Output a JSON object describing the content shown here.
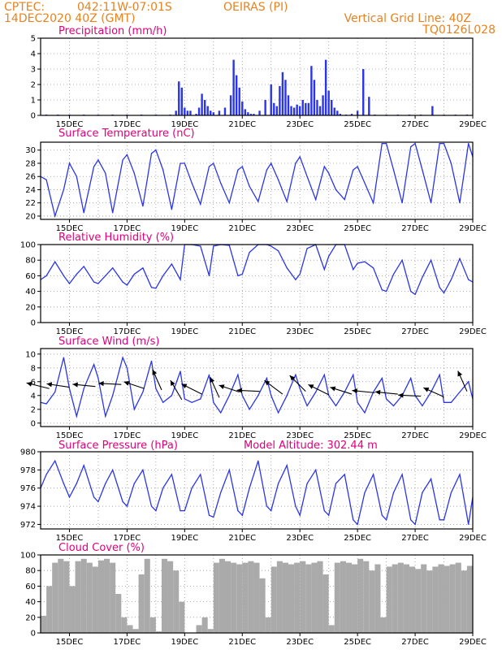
{
  "header": {
    "center": "CPTEC:",
    "location": "042:11W-07:01S",
    "station": "OEIRAS (PI)",
    "init": "14DEC2020 40Z (GMT)",
    "grid_note": "Vertical Grid Line: 40Z",
    "code": "TQ0126L028"
  },
  "colors": {
    "header": "#e8821e",
    "title": "#e0007a",
    "line": "#2a35e8",
    "cloud": "#aaaaaa",
    "grid": "#999999"
  },
  "x_axis": {
    "start_day": 14.0,
    "end_day": 29.0,
    "labels": [
      {
        "day": 15,
        "text": "15DEC"
      },
      {
        "day": 17,
        "text": "17DEC"
      },
      {
        "day": 19,
        "text": "19DEC"
      },
      {
        "day": 21,
        "text": "21DEC"
      },
      {
        "day": 23,
        "text": "23DEC"
      },
      {
        "day": 25,
        "text": "25DEC"
      },
      {
        "day": 27,
        "text": "27DEC"
      },
      {
        "day": 29,
        "text": "29DEC"
      }
    ]
  },
  "chart_data": [
    {
      "id": "precip",
      "type": "bar",
      "title": "Precipitation (mm/h)",
      "ylim": [
        0,
        5
      ],
      "yticks": [
        0,
        1,
        2,
        3,
        4,
        5
      ],
      "grid": true,
      "x": [
        14.2,
        14.6,
        15.0,
        15.5,
        16.0,
        16.5,
        17.0,
        17.5,
        18.0,
        18.5,
        18.7,
        18.8,
        18.9,
        19.0,
        19.1,
        19.2,
        19.4,
        19.5,
        19.6,
        19.7,
        19.8,
        19.9,
        20.0,
        20.2,
        20.4,
        20.6,
        20.7,
        20.8,
        20.9,
        21.0,
        21.1,
        21.2,
        21.3,
        21.4,
        21.6,
        21.8,
        22.0,
        22.1,
        22.2,
        22.3,
        22.4,
        22.5,
        22.6,
        22.7,
        22.8,
        22.9,
        23.0,
        23.1,
        23.2,
        23.3,
        23.4,
        23.5,
        23.6,
        23.7,
        23.8,
        23.9,
        24.0,
        24.1,
        24.2,
        24.3,
        24.4,
        24.6,
        24.8,
        25.0,
        25.2,
        25.4,
        25.6,
        26.0,
        26.4,
        26.8,
        27.2,
        27.6,
        28.0,
        28.4,
        28.8
      ],
      "values": [
        0.05,
        0.05,
        0.05,
        0.05,
        0.05,
        0.05,
        0.05,
        0.05,
        0.05,
        0.05,
        0.3,
        2.2,
        1.8,
        0.5,
        0.3,
        0.3,
        0.1,
        0.5,
        1.4,
        1.0,
        0.6,
        0.3,
        0.2,
        0.3,
        0.5,
        1.3,
        3.6,
        2.6,
        1.8,
        0.9,
        0.4,
        0.2,
        0.1,
        0.1,
        0.3,
        1.0,
        2.0,
        0.8,
        0.6,
        1.9,
        2.8,
        2.3,
        1.3,
        0.6,
        0.5,
        0.7,
        0.6,
        1.0,
        0.8,
        0.8,
        3.2,
        2.3,
        1.0,
        0.6,
        1.3,
        3.6,
        1.6,
        1.0,
        0.5,
        0.3,
        0.1,
        0.05,
        0.1,
        0.3,
        3.0,
        1.2,
        0.05,
        0.05,
        0.05,
        0.05,
        0.05,
        0.6,
        0.05,
        0.05,
        0.05
      ]
    },
    {
      "id": "temp",
      "type": "line",
      "title": "Surface Temperature (nC)",
      "ylim": [
        19.5,
        31.2
      ],
      "yticks": [
        20,
        22,
        24,
        26,
        28,
        30
      ],
      "grid": true,
      "x": [
        14.0,
        14.2,
        14.5,
        14.8,
        15.0,
        15.25,
        15.5,
        15.85,
        16.0,
        16.25,
        16.5,
        16.85,
        17.0,
        17.25,
        17.55,
        17.85,
        18.0,
        18.25,
        18.55,
        18.85,
        19.0,
        19.25,
        19.55,
        19.85,
        20.0,
        20.25,
        20.55,
        20.85,
        21.0,
        21.25,
        21.55,
        21.85,
        22.0,
        22.25,
        22.55,
        22.85,
        23.0,
        23.25,
        23.55,
        23.85,
        24.0,
        24.25,
        24.55,
        24.85,
        25.0,
        25.25,
        25.55,
        25.85,
        26.0,
        26.25,
        26.55,
        26.85,
        27.0,
        27.25,
        27.55,
        27.85,
        28.0,
        28.25,
        28.55,
        28.85,
        29.0
      ],
      "values": [
        26.0,
        25.5,
        20.0,
        24.0,
        28.0,
        26.0,
        20.5,
        27.5,
        28.5,
        26.5,
        20.5,
        28.5,
        29.3,
        26.5,
        21.5,
        29.5,
        30.0,
        27.0,
        21.0,
        28.0,
        28.0,
        25.0,
        21.8,
        27.5,
        28.0,
        25.0,
        22.0,
        27.0,
        27.5,
        24.5,
        22.2,
        27.0,
        28.0,
        25.5,
        22.2,
        28.0,
        29.0,
        26.0,
        22.5,
        27.5,
        26.5,
        24.0,
        22.5,
        27.0,
        27.5,
        25.0,
        22.0,
        31.0,
        31.0,
        27.0,
        22.0,
        30.5,
        31.0,
        27.0,
        22.0,
        31.0,
        31.0,
        28.0,
        22.0,
        31.0,
        29.0
      ]
    },
    {
      "id": "rh",
      "type": "line",
      "title": "Relative Humidity (%)",
      "ylim": [
        0,
        100
      ],
      "yticks": [
        0,
        20,
        40,
        60,
        80,
        100
      ],
      "grid": true,
      "x": [
        14.0,
        14.2,
        14.5,
        14.8,
        15.0,
        15.25,
        15.5,
        15.85,
        16.0,
        16.25,
        16.5,
        16.85,
        17.0,
        17.25,
        17.55,
        17.85,
        18.0,
        18.25,
        18.55,
        18.85,
        19.0,
        19.25,
        19.55,
        19.85,
        20.0,
        20.25,
        20.55,
        20.85,
        21.0,
        21.25,
        21.55,
        21.85,
        22.0,
        22.25,
        22.55,
        22.85,
        23.0,
        23.25,
        23.55,
        23.85,
        24.0,
        24.25,
        24.55,
        24.85,
        25.0,
        25.25,
        25.55,
        25.85,
        26.0,
        26.25,
        26.55,
        26.85,
        27.0,
        27.25,
        27.55,
        27.85,
        28.0,
        28.25,
        28.55,
        28.85,
        29.0
      ],
      "values": [
        55,
        60,
        78,
        60,
        50,
        62,
        72,
        52,
        50,
        60,
        70,
        52,
        48,
        62,
        70,
        45,
        44,
        60,
        75,
        55,
        100,
        100,
        98,
        60,
        98,
        100,
        99,
        60,
        62,
        90,
        100,
        100,
        98,
        92,
        70,
        55,
        62,
        95,
        100,
        68,
        85,
        100,
        100,
        68,
        76,
        78,
        70,
        42,
        40,
        62,
        80,
        40,
        36,
        58,
        80,
        45,
        38,
        55,
        82,
        55,
        52
      ]
    },
    {
      "id": "wind",
      "type": "line",
      "title": "Surface Wind (m/s)",
      "ylim": [
        -0.5,
        10.8
      ],
      "yticks": [
        0,
        2,
        4,
        6,
        8,
        10
      ],
      "grid": true,
      "x": [
        14.0,
        14.2,
        14.5,
        14.8,
        15.0,
        15.25,
        15.5,
        15.85,
        16.0,
        16.25,
        16.5,
        16.85,
        17.0,
        17.25,
        17.55,
        17.85,
        18.0,
        18.25,
        18.55,
        18.85,
        19.0,
        19.25,
        19.55,
        19.85,
        20.0,
        20.25,
        20.55,
        20.85,
        21.0,
        21.25,
        21.55,
        21.85,
        22.0,
        22.25,
        22.55,
        22.85,
        23.0,
        23.25,
        23.55,
        23.85,
        24.0,
        24.25,
        24.55,
        24.85,
        25.0,
        25.25,
        25.55,
        25.85,
        26.0,
        26.25,
        26.55,
        26.85,
        27.0,
        27.25,
        27.55,
        27.85,
        28.0,
        28.25,
        28.55,
        28.85,
        29.0
      ],
      "values": [
        3.0,
        2.8,
        4.5,
        9.5,
        5.0,
        1.0,
        5.0,
        8.5,
        6.5,
        1.0,
        4.0,
        9.5,
        8.0,
        2.0,
        4.5,
        9.0,
        5.0,
        3.0,
        4.0,
        7.5,
        3.5,
        3.0,
        3.5,
        7.0,
        3.0,
        1.5,
        4.0,
        7.0,
        4.0,
        2.0,
        4.0,
        6.5,
        4.0,
        1.5,
        4.0,
        7.0,
        5.0,
        2.5,
        4.5,
        7.0,
        4.0,
        2.5,
        4.5,
        7.0,
        3.0,
        1.5,
        4.5,
        6.5,
        3.5,
        2.5,
        4.0,
        6.5,
        4.0,
        2.5,
        4.5,
        7.0,
        3.0,
        3.0,
        4.5,
        6.0,
        3.5
      ],
      "arrows": [
        {
          "day": 14.3,
          "y": 5.0,
          "dx": -1.0,
          "dy": 0.25
        },
        {
          "day": 15.0,
          "y": 5.2,
          "dx": -1.0,
          "dy": 0.15
        },
        {
          "day": 15.9,
          "y": 5.3,
          "dx": -1.0,
          "dy": 0.1
        },
        {
          "day": 16.8,
          "y": 5.6,
          "dx": -1.0,
          "dy": 0.05
        },
        {
          "day": 17.6,
          "y": 5.0,
          "dx": -0.9,
          "dy": 0.3
        },
        {
          "day": 18.2,
          "y": 4.8,
          "dx": -0.4,
          "dy": 0.9
        },
        {
          "day": 18.9,
          "y": 3.4,
          "dx": -0.5,
          "dy": 0.85
        },
        {
          "day": 19.6,
          "y": 4.2,
          "dx": -0.9,
          "dy": 0.45
        },
        {
          "day": 20.2,
          "y": 3.7,
          "dx": -0.4,
          "dy": 0.9
        },
        {
          "day": 20.9,
          "y": 4.5,
          "dx": -0.9,
          "dy": 0.3
        },
        {
          "day": 21.6,
          "y": 4.6,
          "dx": -1.0,
          "dy": 0.05
        },
        {
          "day": 22.4,
          "y": 4.2,
          "dx": -0.8,
          "dy": 0.6
        },
        {
          "day": 23.2,
          "y": 4.6,
          "dx": -0.7,
          "dy": 0.7
        },
        {
          "day": 24.0,
          "y": 4.1,
          "dx": -0.9,
          "dy": 0.45
        },
        {
          "day": 24.8,
          "y": 4.2,
          "dx": -0.95,
          "dy": 0.3
        },
        {
          "day": 25.6,
          "y": 4.4,
          "dx": -1.0,
          "dy": 0.1
        },
        {
          "day": 26.4,
          "y": 4.2,
          "dx": -1.0,
          "dy": 0.1
        },
        {
          "day": 27.2,
          "y": 3.9,
          "dx": -1.0,
          "dy": 0.05
        },
        {
          "day": 28.0,
          "y": 3.8,
          "dx": -0.9,
          "dy": 0.4
        },
        {
          "day": 28.8,
          "y": 4.6,
          "dx": -0.4,
          "dy": 0.9
        }
      ]
    },
    {
      "id": "pressure",
      "type": "line",
      "title": "Surface Pressure (hPa)",
      "subtitle": "Model Altitude: 302.44 m",
      "ylim": [
        971.5,
        980
      ],
      "yticks": [
        972,
        974,
        976,
        978,
        980
      ],
      "grid": true,
      "x": [
        14.0,
        14.2,
        14.5,
        14.8,
        15.0,
        15.25,
        15.5,
        15.85,
        16.0,
        16.25,
        16.5,
        16.85,
        17.0,
        17.25,
        17.55,
        17.85,
        18.0,
        18.25,
        18.55,
        18.85,
        19.0,
        19.25,
        19.55,
        19.85,
        20.0,
        20.25,
        20.55,
        20.85,
        21.0,
        21.25,
        21.55,
        21.85,
        22.0,
        22.25,
        22.55,
        22.85,
        23.0,
        23.25,
        23.55,
        23.85,
        24.0,
        24.25,
        24.55,
        24.85,
        25.0,
        25.25,
        25.55,
        25.85,
        26.0,
        26.25,
        26.55,
        26.85,
        27.0,
        27.25,
        27.55,
        27.85,
        28.0,
        28.25,
        28.55,
        28.85,
        29.0
      ],
      "values": [
        976.0,
        977.5,
        979.0,
        976.5,
        975.0,
        976.5,
        978.5,
        975.0,
        974.5,
        976.5,
        978.0,
        974.5,
        974.0,
        976.5,
        978.0,
        974.0,
        973.5,
        976.0,
        977.5,
        973.5,
        973.5,
        976.0,
        977.5,
        973.0,
        972.8,
        975.5,
        978.0,
        973.5,
        973.0,
        976.0,
        979.0,
        974.0,
        973.5,
        976.5,
        978.5,
        974.0,
        973.0,
        976.5,
        978.0,
        973.5,
        973.0,
        976.5,
        977.5,
        972.5,
        972.0,
        975.5,
        977.5,
        973.0,
        972.5,
        975.5,
        977.5,
        972.5,
        972.0,
        975.5,
        977.0,
        972.5,
        972.5,
        975.5,
        977.5,
        972.0,
        975.0
      ]
    },
    {
      "id": "cloud",
      "type": "area",
      "title": "Cloud Cover (%)",
      "ylim": [
        0,
        100
      ],
      "yticks": [
        0,
        20,
        40,
        60,
        80,
        100
      ],
      "grid": true,
      "x": [
        14.0,
        14.2,
        14.4,
        14.6,
        14.8,
        15.0,
        15.2,
        15.4,
        15.6,
        15.8,
        16.0,
        16.2,
        16.4,
        16.6,
        16.8,
        17.0,
        17.2,
        17.4,
        17.6,
        17.8,
        18.0,
        18.2,
        18.4,
        18.6,
        18.8,
        19.0,
        19.2,
        19.4,
        19.6,
        19.8,
        20.0,
        20.2,
        20.4,
        20.6,
        20.8,
        21.0,
        21.2,
        21.4,
        21.6,
        21.8,
        22.0,
        22.2,
        22.4,
        22.6,
        22.8,
        23.0,
        23.2,
        23.4,
        23.6,
        23.8,
        24.0,
        24.2,
        24.4,
        24.6,
        24.8,
        25.0,
        25.2,
        25.4,
        25.6,
        25.8,
        26.0,
        26.2,
        26.4,
        26.6,
        26.8,
        27.0,
        27.2,
        27.4,
        27.6,
        27.8,
        28.0,
        28.2,
        28.4,
        28.6,
        28.8,
        29.0
      ],
      "values": [
        22,
        60,
        90,
        95,
        92,
        60,
        92,
        95,
        90,
        85,
        93,
        95,
        90,
        50,
        20,
        10,
        5,
        75,
        95,
        20,
        2,
        95,
        92,
        80,
        40,
        0,
        0,
        10,
        20,
        5,
        90,
        95,
        92,
        90,
        88,
        90,
        92,
        90,
        70,
        20,
        85,
        92,
        90,
        88,
        90,
        92,
        88,
        90,
        92,
        75,
        10,
        90,
        92,
        90,
        88,
        95,
        92,
        80,
        88,
        20,
        85,
        88,
        90,
        88,
        85,
        82,
        88,
        80,
        85,
        88,
        86,
        88,
        90,
        80,
        86,
        88
      ]
    }
  ]
}
